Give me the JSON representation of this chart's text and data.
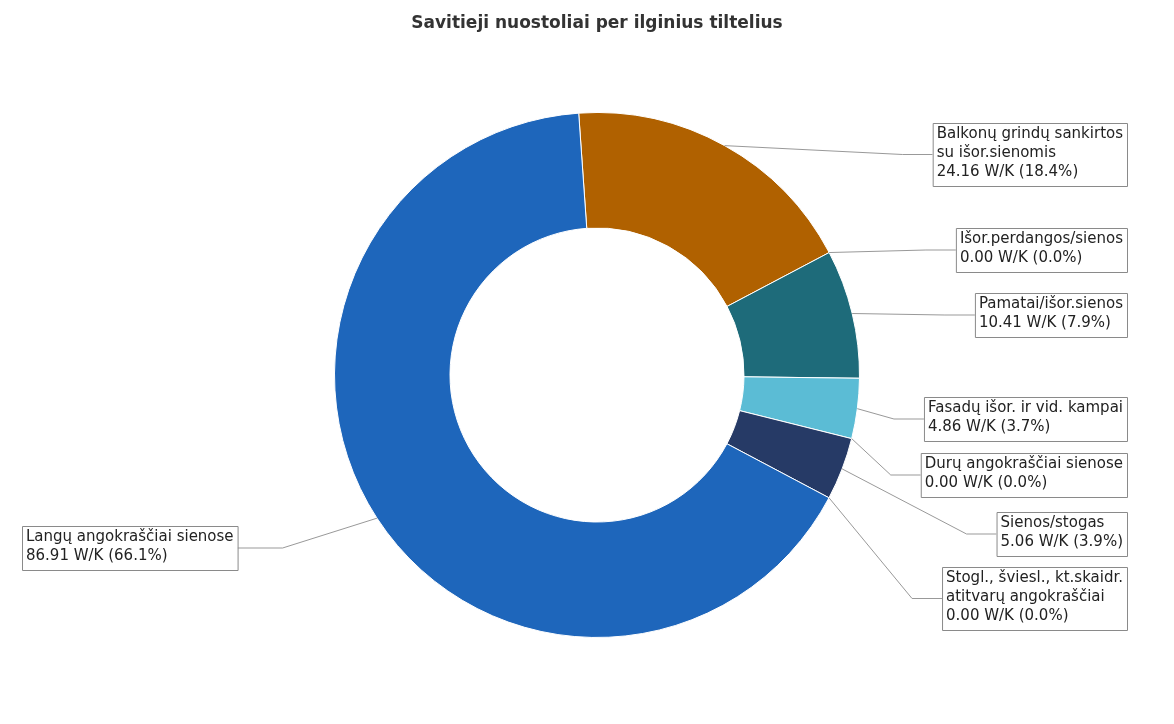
{
  "chart_data": {
    "type": "donut",
    "title": "Savitieji nuostoliai per ilginius tiltelius",
    "categories": [
      "Balkonų grindų sankirtos su išor.sienomis",
      "Išor.perdangos/sienos",
      "Pamatai/išor.sienos",
      "Fasadų išor. ir vid. kampai",
      "Durų angokraščiai sienose",
      "Sienos/stogas",
      "Stogl., šviesl., kt.skaidr. atitvarų angokraščiai",
      "Langų angokraščiai sienose"
    ],
    "values": [
      24.16,
      0.0,
      10.41,
      4.86,
      0.0,
      5.06,
      0.0,
      86.91
    ],
    "colors": [
      "#b06100",
      "#7f9f3f",
      "#1e6b7a",
      "#5bbcd5",
      "#8c4a9a",
      "#263a66",
      "#999999",
      "#1e66bb"
    ],
    "value_labels": [
      "24.16 W/K (18.4%)",
      "0.00 W/K (0.0%)",
      "10.41 W/K (7.9%)",
      "4.86 W/K (3.7%)",
      "0.00 W/K (0.0%)",
      "5.06 W/K (3.9%)",
      "0.00 W/K (0.0%)",
      "86.91 W/K (66.1%)"
    ]
  }
}
